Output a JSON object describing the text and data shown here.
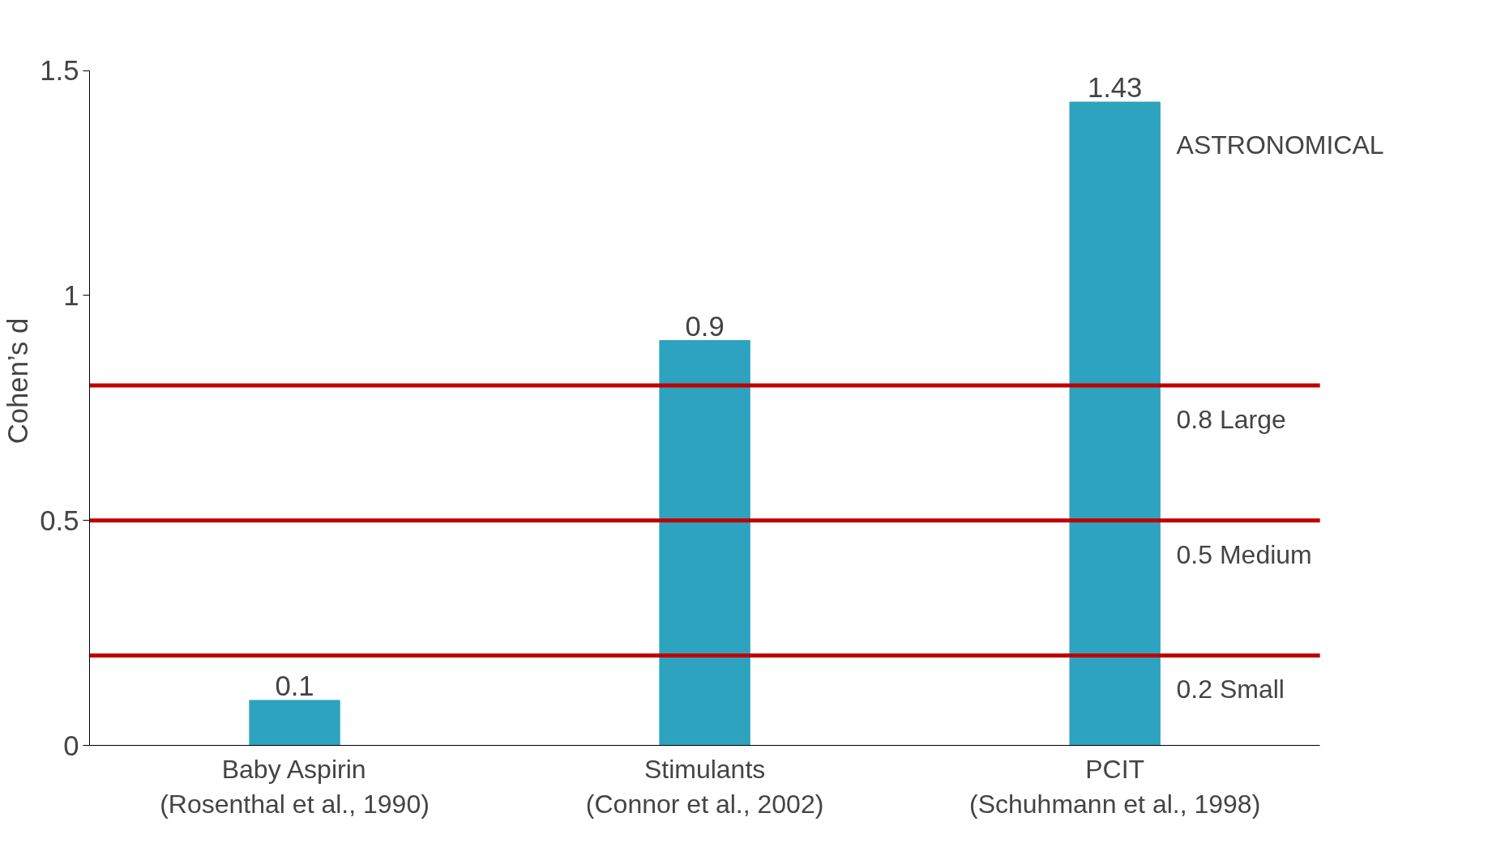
{
  "chart_data": {
    "type": "bar",
    "ylabel": "Cohen’s d",
    "categories": [
      "Baby Aspirin\n(Rosenthal et al., 1990)",
      "Stimulants\n(Connor et al., 2002)",
      "PCIT\n(Schuhmann et al., 1998)"
    ],
    "values": [
      0.1,
      0.9,
      1.43
    ],
    "color": "#2ea3bf",
    "data_labels": true,
    "ylim": [
      0,
      1.5
    ],
    "yticks": [
      0,
      0.5,
      1,
      1.5
    ],
    "grid": false,
    "ref_lines": [
      {
        "axis": "y",
        "value": 0.8,
        "label": "0.8 Large",
        "color": "#c00000"
      },
      {
        "axis": "y",
        "value": 0.5,
        "label": "0.5 Medium",
        "color": "#c00000"
      },
      {
        "axis": "y",
        "value": 0.2,
        "label": "0.2 Small",
        "color": "#c00000"
      }
    ],
    "annotations": [
      "ASTRONOMICAL"
    ]
  }
}
